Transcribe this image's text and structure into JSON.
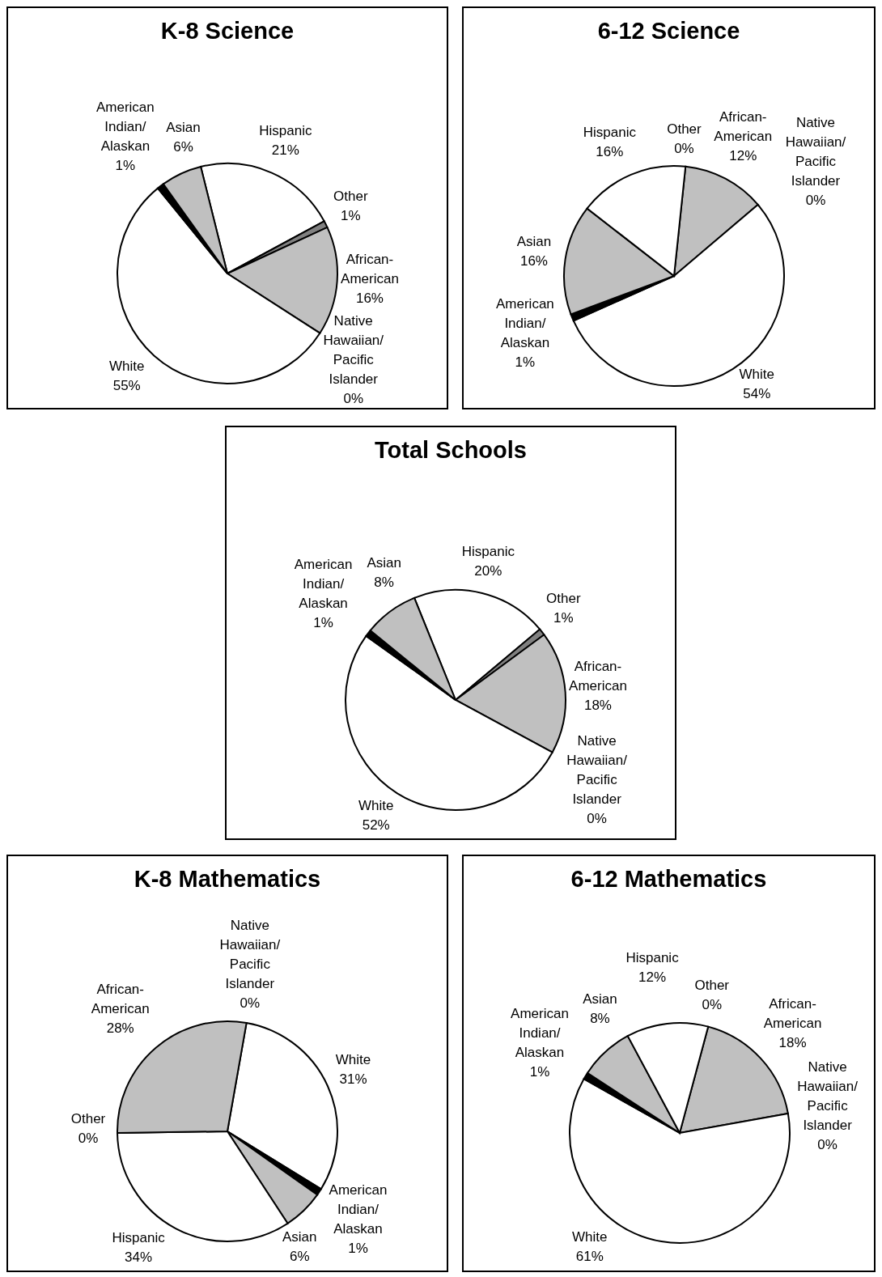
{
  "chart_data": [
    {
      "type": "pie",
      "title": "K-8 Science",
      "categories": [
        "Hispanic",
        "Other",
        "African-American",
        "Native Hawaiian/Pacific Islander",
        "White",
        "American Indian/Alaskan",
        "Asian"
      ],
      "values": [
        21,
        1,
        16,
        0,
        55,
        1,
        6
      ],
      "value_labels": [
        "21%",
        "1%",
        "16%",
        "0%",
        "55%",
        "1%",
        "6%"
      ],
      "colors": [
        "#ffffff",
        "#808080",
        "#c0c0c0",
        "#000000",
        "#ffffff",
        "#000000",
        "#c0c0c0"
      ],
      "legend": false
    },
    {
      "type": "pie",
      "title": "6-12 Science",
      "categories": [
        "Other",
        "African-American",
        "Native Hawaiian/Pacific Islander",
        "White",
        "American Indian/Alaskan",
        "Asian",
        "Hispanic"
      ],
      "values": [
        0,
        12,
        0,
        54,
        1,
        16,
        16
      ],
      "value_labels": [
        "0%",
        "12%",
        "0%",
        "54%",
        "1%",
        "16%",
        "16%"
      ],
      "colors": [
        "#808080",
        "#c0c0c0",
        "#000000",
        "#ffffff",
        "#000000",
        "#c0c0c0",
        "#ffffff"
      ],
      "legend": false
    },
    {
      "type": "pie",
      "title": "Total Schools",
      "categories": [
        "Hispanic",
        "Other",
        "African-American",
        "Native Hawaiian/Pacific Islander",
        "White",
        "American Indian/Alaskan",
        "Asian"
      ],
      "values": [
        20,
        1,
        18,
        0,
        52,
        1,
        8
      ],
      "value_labels": [
        "20%",
        "1%",
        "18%",
        "0%",
        "52%",
        "1%",
        "8%"
      ],
      "colors": [
        "#ffffff",
        "#808080",
        "#c0c0c0",
        "#000000",
        "#ffffff",
        "#000000",
        "#c0c0c0"
      ],
      "legend": false
    },
    {
      "type": "pie",
      "title": "K-8 Mathematics",
      "categories": [
        "White",
        "American Indian/Alaskan",
        "Asian",
        "Hispanic",
        "Other",
        "African-American",
        "Native Hawaiian/Pacific Islander"
      ],
      "values": [
        31,
        1,
        6,
        34,
        0,
        28,
        0
      ],
      "value_labels": [
        "31%",
        "1%",
        "6%",
        "34%",
        "0%",
        "28%",
        "0%"
      ],
      "colors": [
        "#ffffff",
        "#000000",
        "#c0c0c0",
        "#ffffff",
        "#808080",
        "#c0c0c0",
        "#000000"
      ],
      "legend": false
    },
    {
      "type": "pie",
      "title": "6-12 Mathematics",
      "categories": [
        "Other",
        "African-American",
        "Native Hawaiian/Pacific Islander",
        "White",
        "American Indian/Alaskan",
        "Asian",
        "Hispanic"
      ],
      "values": [
        0,
        18,
        0,
        61,
        1,
        8,
        12
      ],
      "value_labels": [
        "0%",
        "18%",
        "0%",
        "61%",
        "1%",
        "8%",
        "12%"
      ],
      "colors": [
        "#000000",
        "#c0c0c0",
        "#000000",
        "#ffffff",
        "#000000",
        "#c0c0c0",
        "#ffffff"
      ],
      "legend": false
    }
  ]
}
